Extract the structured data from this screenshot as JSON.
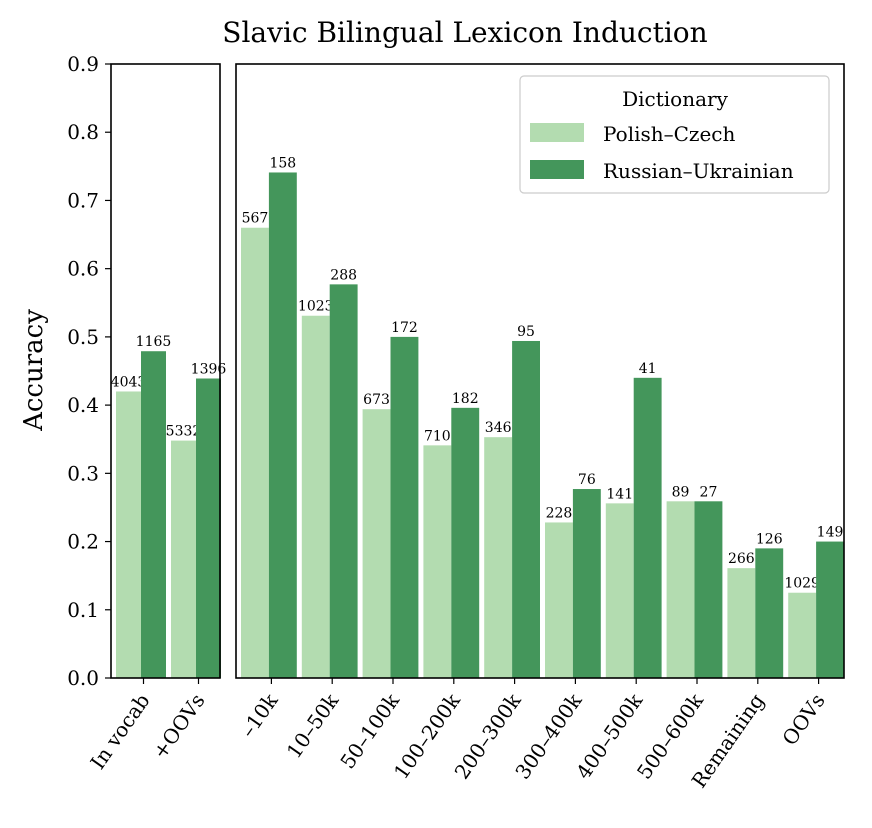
{
  "chart_data": {
    "type": "bar",
    "title": "Slavic Bilingual Lexicon Induction",
    "ylabel": "Accuracy",
    "xlabel": "",
    "ylim": [
      0,
      0.9
    ],
    "yticks": [
      "0.0",
      "0.1",
      "0.2",
      "0.3",
      "0.4",
      "0.5",
      "0.6",
      "0.7",
      "0.8",
      "0.9"
    ],
    "grid": false,
    "colors": {
      "Polish–Czech": "#b3dcb0",
      "Russian–Ukrainian": "#44965b"
    },
    "legend": {
      "title": "Dictionary",
      "placement": "top-right",
      "entries": [
        "Polish–Czech",
        "Russian–Ukrainian"
      ]
    },
    "panels": [
      {
        "categories": [
          "In vocab",
          "+OOVs"
        ],
        "series": [
          {
            "name": "Polish–Czech",
            "values": [
              0.42,
              0.348
            ],
            "labels": [
              "4043",
              "5332"
            ]
          },
          {
            "name": "Russian–Ukrainian",
            "values": [
              0.479,
              0.439
            ],
            "labels": [
              "1165",
              "1396"
            ]
          }
        ]
      },
      {
        "categories": [
          "–10k",
          "10–50k",
          "50–100k",
          "100–200k",
          "200–300k",
          "300–400k",
          "400–500k",
          "500–600k",
          "Remaining",
          "OOVs"
        ],
        "series": [
          {
            "name": "Polish–Czech",
            "values": [
              0.66,
              0.531,
              0.394,
              0.341,
              0.353,
              0.228,
              0.256,
              0.259,
              0.161,
              0.125
            ],
            "labels": [
              "567",
              "1023",
              "673",
              "710",
              "346",
              "228",
              "141",
              "89",
              "266",
              "1029"
            ]
          },
          {
            "name": "Russian–Ukrainian",
            "values": [
              0.741,
              0.577,
              0.5,
              0.396,
              0.494,
              0.277,
              0.44,
              0.259,
              0.19,
              0.2
            ],
            "labels": [
              "158",
              "288",
              "172",
              "182",
              "95",
              "76",
              "41",
              "27",
              "126",
              "149"
            ]
          }
        ]
      }
    ]
  }
}
